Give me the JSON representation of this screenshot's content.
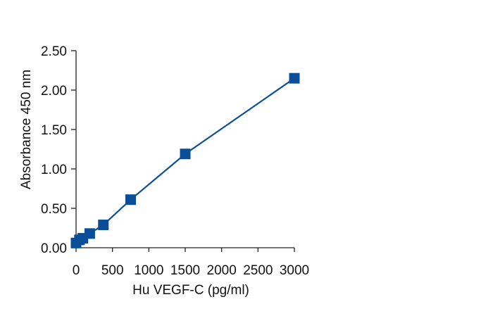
{
  "chart_data": {
    "type": "line",
    "title": "",
    "xlabel": "Hu VEGF-C (pg/ml)",
    "ylabel": "Absorbance 450 nm",
    "xlim": [
      0,
      3000
    ],
    "ylim": [
      0,
      2.5
    ],
    "xticks": [
      0,
      500,
      1000,
      1500,
      2000,
      2500,
      3000
    ],
    "xtick_labels": [
      "0",
      "500",
      "1000",
      "1500",
      "2000",
      "2500",
      "3000"
    ],
    "yticks": [
      0,
      0.5,
      1.0,
      1.5,
      2.0,
      2.5
    ],
    "ytick_labels": [
      "0.00",
      "0.50",
      "1.00",
      "1.50",
      "2.00",
      "2.50"
    ],
    "grid": false,
    "marker": "square",
    "series": [
      {
        "name": "",
        "color": "#0a4e9a",
        "x": [
          0,
          47,
          94,
          188,
          375,
          750,
          1500,
          3000
        ],
        "y": [
          0.06,
          0.1,
          0.12,
          0.18,
          0.29,
          0.61,
          1.19,
          2.15
        ]
      }
    ]
  }
}
